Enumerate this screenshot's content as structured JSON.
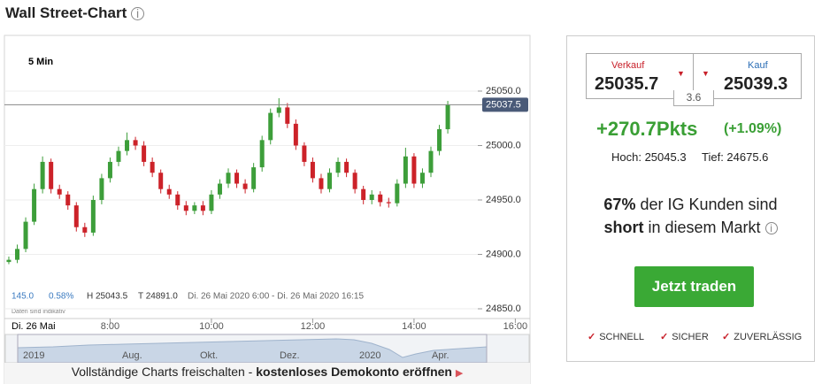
{
  "header": {
    "title": "Wall Street-Chart"
  },
  "chart_data": {
    "type": "candlestick",
    "interval": "5 Min",
    "x": [
      360,
      370,
      380,
      390,
      400,
      410,
      420,
      430,
      440,
      450,
      460,
      470,
      480,
      490,
      500,
      510,
      520,
      530,
      540,
      550,
      560,
      570,
      580,
      590,
      600,
      610,
      620,
      630,
      640,
      650,
      660,
      670,
      680,
      690,
      700,
      710,
      720,
      730,
      740,
      750,
      760,
      770,
      780,
      790,
      800,
      810,
      820,
      830,
      840,
      850,
      860,
      870,
      880
    ],
    "open": [
      24893,
      24895,
      24905,
      24930,
      24960,
      24985,
      24960,
      24955,
      24945,
      24925,
      24920,
      24950,
      24970,
      24985,
      24995,
      25005,
      25000,
      24985,
      24975,
      24960,
      24955,
      24945,
      24940,
      24945,
      24940,
      24955,
      24965,
      24975,
      24965,
      24960,
      24980,
      25005,
      25030,
      25035,
      25020,
      25000,
      24985,
      24970,
      24960,
      24975,
      24985,
      24975,
      24960,
      24950,
      24955,
      24948,
      24947,
      24965,
      24990,
      24965,
      24975,
      24995,
      25015
    ],
    "high": [
      24898,
      24909,
      24934,
      24965,
      24990,
      24988,
      24964,
      24958,
      24948,
      24929,
      24954,
      24974,
      24989,
      24999,
      25012,
      25008,
      25004,
      24989,
      24978,
      24964,
      24958,
      24949,
      24948,
      24949,
      24959,
      24969,
      24979,
      24978,
      24969,
      24984,
      25009,
      25034,
      25043.5,
      25039,
      25024,
      25003,
      24989,
      24974,
      24979,
      24989,
      24988,
      24978,
      24963,
      24959,
      24958,
      24952,
      24969,
      24998,
      24993,
      24979,
      24999,
      25019,
      25041
    ],
    "low": [
      24891,
      24892,
      24902,
      24927,
      24956,
      24956,
      24951,
      24941,
      24921,
      24916,
      24917,
      24946,
      24966,
      24981,
      24991,
      24996,
      24981,
      24971,
      24956,
      24951,
      24941,
      24936,
      24937,
      24936,
      24937,
      24951,
      24961,
      24961,
      24956,
      24957,
      24976,
      25001,
      25026,
      25016,
      24996,
      24981,
      24966,
      24956,
      24957,
      24971,
      24971,
      24956,
      24946,
      24946,
      24944,
      24943,
      24944,
      24961,
      24961,
      24961,
      24971,
      24991,
      25011
    ],
    "close": [
      24895,
      24905,
      24930,
      24960,
      24985,
      24960,
      24955,
      24945,
      24925,
      24920,
      24950,
      24970,
      24985,
      24995,
      25005,
      25000,
      24985,
      24975,
      24960,
      24955,
      24945,
      24940,
      24945,
      24940,
      24955,
      24965,
      24975,
      24965,
      24960,
      24980,
      25005,
      25030,
      25035,
      25020,
      25000,
      24985,
      24970,
      24960,
      24975,
      24985,
      24975,
      24960,
      24950,
      24955,
      24948,
      24947,
      24965,
      24990,
      24965,
      24975,
      24995,
      25015,
      25037.5
    ],
    "up_color": "#3d9e3a",
    "down_color": "#cc2229",
    "xlim": [
      354.8,
      977.4
    ],
    "xticks": [
      {
        "value": 480,
        "label": "8:00"
      },
      {
        "value": 600,
        "label": "10:00"
      },
      {
        "value": 720,
        "label": "12:00"
      },
      {
        "value": 840,
        "label": "14:00"
      },
      {
        "value": 960,
        "label": "16:00"
      }
    ],
    "ylim": [
      24843.5,
      25101.2
    ],
    "yticks": [
      {
        "value": 24850,
        "label": "24850.0"
      },
      {
        "value": 24900,
        "label": "24900.0"
      },
      {
        "value": 24950,
        "label": "24950.0"
      },
      {
        "value": 25000,
        "label": "25000.0"
      },
      {
        "value": 25050,
        "label": "25050.0"
      }
    ],
    "grid": true,
    "last_price": 25037.5,
    "date_label": "Di. 26 Mai",
    "stats": {
      "change": "145.0",
      "change_pct": "0.58%",
      "high": "H 25043.5",
      "low": "T 24891.0",
      "range": "Di. 26 Mai 2020 6:00 - Di. 26 Mai 2020 16:15"
    },
    "note": "Daten sind indikativ"
  },
  "navigator": {
    "labels": [
      "2019",
      "Aug.",
      "Okt.",
      "Dez.",
      "2020",
      "Apr."
    ]
  },
  "banner": {
    "text": "Vollständige Charts freischalten -",
    "link": "kostenloses Demokonto eröffnen"
  },
  "panel": {
    "sell": {
      "label": "Verkauf",
      "price": "25035.7"
    },
    "buy": {
      "label": "Kauf",
      "price": "25039.3"
    },
    "spread": "3.6",
    "change": "+270.7Pkts",
    "change_pct": "(+1.09%)",
    "high": "Hoch: 25045.3",
    "low": "Tief: 24675.6",
    "sentiment": {
      "pct": "67%",
      "text1": "der IG Kunden sind",
      "short": "short",
      "text2": "in diesem Markt"
    },
    "button": "Jetzt traden",
    "features": [
      "SCHNELL",
      "SICHER",
      "ZUVERLÄSSIG"
    ]
  }
}
